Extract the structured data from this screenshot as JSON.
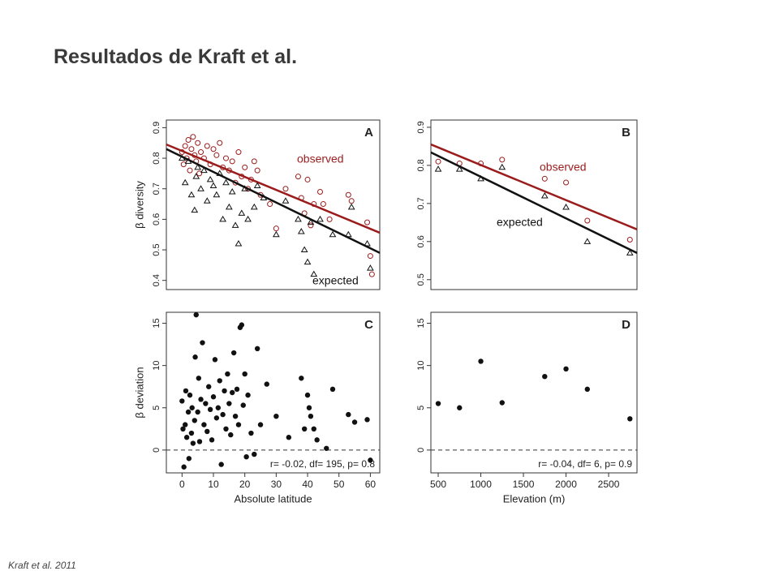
{
  "title": "Resultados de Kraft et al.",
  "footer": "Kraft et al. 2011",
  "chart_data": [
    {
      "type": "scatter",
      "panel": "A",
      "y_label": "β diversity",
      "xlim": [
        -5,
        63
      ],
      "ylim": [
        0.37,
        0.925
      ],
      "yticks": [
        0.4,
        0.5,
        0.6,
        0.7,
        0.8,
        0.9
      ],
      "series": [
        {
          "name": "observed",
          "color": "#9b1c1c",
          "marker": "circle",
          "x": [
            0,
            0.5,
            1,
            1.5,
            2,
            2.5,
            3,
            3.5,
            4,
            4.5,
            5,
            5.5,
            6,
            7,
            8,
            9,
            10,
            11,
            12,
            13,
            14,
            15,
            16,
            17,
            18,
            19,
            20,
            21,
            22,
            23,
            24,
            25,
            28,
            30,
            33,
            37,
            38,
            39,
            40,
            41,
            42,
            44,
            45,
            47,
            53,
            54,
            59,
            60,
            60.5
          ],
          "values": [
            0.82,
            0.78,
            0.84,
            0.8,
            0.86,
            0.76,
            0.83,
            0.87,
            0.81,
            0.79,
            0.85,
            0.75,
            0.82,
            0.8,
            0.84,
            0.78,
            0.83,
            0.81,
            0.85,
            0.77,
            0.8,
            0.76,
            0.79,
            0.72,
            0.82,
            0.74,
            0.77,
            0.7,
            0.73,
            0.79,
            0.76,
            0.68,
            0.65,
            0.57,
            0.7,
            0.74,
            0.67,
            0.62,
            0.73,
            0.58,
            0.65,
            0.69,
            0.65,
            0.6,
            0.68,
            0.66,
            0.59,
            0.48,
            0.42
          ],
          "fit": {
            "x": [
              -5,
              63
            ],
            "values": [
              0.845,
              0.556
            ]
          }
        },
        {
          "name": "expected",
          "color": "#111111",
          "marker": "triangle",
          "x": [
            0,
            1,
            2,
            3,
            4,
            4.5,
            5,
            6,
            7,
            8,
            9,
            10,
            11,
            12,
            13,
            14,
            15,
            16,
            17,
            18,
            19,
            20,
            21,
            23,
            24,
            26,
            30,
            33,
            37,
            38,
            39,
            40,
            41,
            42,
            44,
            48,
            53,
            54,
            59,
            60
          ],
          "values": [
            0.8,
            0.72,
            0.79,
            0.68,
            0.63,
            0.74,
            0.77,
            0.7,
            0.76,
            0.66,
            0.73,
            0.71,
            0.68,
            0.75,
            0.6,
            0.72,
            0.64,
            0.69,
            0.58,
            0.52,
            0.62,
            0.7,
            0.6,
            0.64,
            0.71,
            0.67,
            0.55,
            0.66,
            0.6,
            0.56,
            0.5,
            0.46,
            0.59,
            0.42,
            0.6,
            0.55,
            0.55,
            0.64,
            0.52,
            0.44
          ],
          "fit": {
            "x": [
              -5,
              63
            ],
            "values": [
              0.83,
              0.49
            ]
          }
        }
      ]
    },
    {
      "type": "scatter",
      "panel": "B",
      "xlim": [
        414,
        2833
      ],
      "ylim": [
        0.474,
        0.919
      ],
      "yticks": [
        0.5,
        0.6,
        0.7,
        0.8,
        0.9
      ],
      "series": [
        {
          "name": "observed",
          "color": "#9b1c1c",
          "marker": "circle",
          "x": [
            500,
            750,
            1000,
            1250,
            1750,
            2000,
            2250,
            2750
          ],
          "values": [
            0.81,
            0.805,
            0.805,
            0.815,
            0.765,
            0.755,
            0.655,
            0.605
          ],
          "fit": {
            "x": [
              414,
              2833
            ],
            "values": [
              0.855,
              0.632
            ]
          }
        },
        {
          "name": "expected",
          "color": "#111111",
          "marker": "triangle",
          "x": [
            500,
            750,
            1000,
            1250,
            1750,
            2000,
            2250,
            2750
          ],
          "values": [
            0.79,
            0.79,
            0.765,
            0.795,
            0.72,
            0.69,
            0.6,
            0.57
          ],
          "fit": {
            "x": [
              414,
              2833
            ],
            "values": [
              0.834,
              0.57
            ]
          }
        }
      ]
    },
    {
      "type": "scatter",
      "panel": "C",
      "y_label": "β deviation",
      "x_label": "Absolute latitude",
      "annotation": "r= -0.02, df= 195, p= 0.8",
      "hline": 0,
      "xlim": [
        -5,
        63
      ],
      "ylim": [
        -2.7,
        16.3
      ],
      "xticks": [
        0,
        10,
        20,
        30,
        40,
        50,
        60
      ],
      "yticks": [
        0,
        5,
        10,
        15
      ],
      "series": [
        {
          "color": "#111111",
          "marker": "dot",
          "x": [
            0,
            0.3,
            0.6,
            1,
            1.2,
            1.5,
            2,
            2.2,
            2.5,
            3,
            3.2,
            3.5,
            4,
            4.2,
            4.5,
            5,
            5.3,
            5.6,
            6,
            6.5,
            7,
            7.5,
            8,
            8.5,
            9,
            9.5,
            10,
            10.5,
            11,
            11.5,
            12,
            12.5,
            13,
            13.5,
            14,
            14.5,
            15,
            15.5,
            16,
            16.5,
            17,
            17.5,
            18,
            18.5,
            19,
            19.5,
            20,
            20.5,
            21,
            22,
            23,
            24,
            25,
            27,
            30,
            34,
            38,
            39,
            40,
            40.5,
            41,
            42,
            43,
            46,
            48,
            53,
            55,
            59,
            60
          ],
          "values": [
            5.8,
            2.5,
            -2,
            3,
            7,
            1.5,
            4.5,
            -1,
            6.5,
            2,
            5,
            0.8,
            3.5,
            11,
            16,
            4.5,
            8.5,
            1,
            6,
            12.7,
            3,
            5.5,
            2.2,
            7.5,
            4.8,
            1.2,
            6.3,
            10.7,
            3.8,
            5,
            8.2,
            -1.7,
            4.2,
            7,
            2.5,
            9,
            5.5,
            1.8,
            6.8,
            11.5,
            4,
            7.2,
            3,
            14.5,
            14.8,
            5.3,
            9,
            -0.8,
            6.5,
            2,
            -0.5,
            12,
            3,
            7.8,
            4,
            1.5,
            8.5,
            2.5,
            6.5,
            5,
            4,
            2.5,
            1.2,
            0.2,
            7.2,
            4.2,
            3.3,
            3.6,
            -1.2
          ]
        }
      ]
    },
    {
      "type": "scatter",
      "panel": "D",
      "x_label": "Elevation (m)",
      "annotation": "r= -0.04, df= 6, p= 0.9",
      "hline": 0,
      "xlim": [
        414,
        2833
      ],
      "ylim": [
        -2.7,
        16.3
      ],
      "xticks": [
        500,
        1000,
        1500,
        2000,
        2500
      ],
      "yticks": [
        0,
        5,
        10,
        15
      ],
      "series": [
        {
          "color": "#111111",
          "marker": "dot",
          "x": [
            500,
            750,
            1000,
            1250,
            1750,
            2000,
            2250,
            2750
          ],
          "values": [
            5.5,
            5,
            10.5,
            5.6,
            8.7,
            9.6,
            7.2,
            3.7
          ]
        }
      ]
    }
  ]
}
